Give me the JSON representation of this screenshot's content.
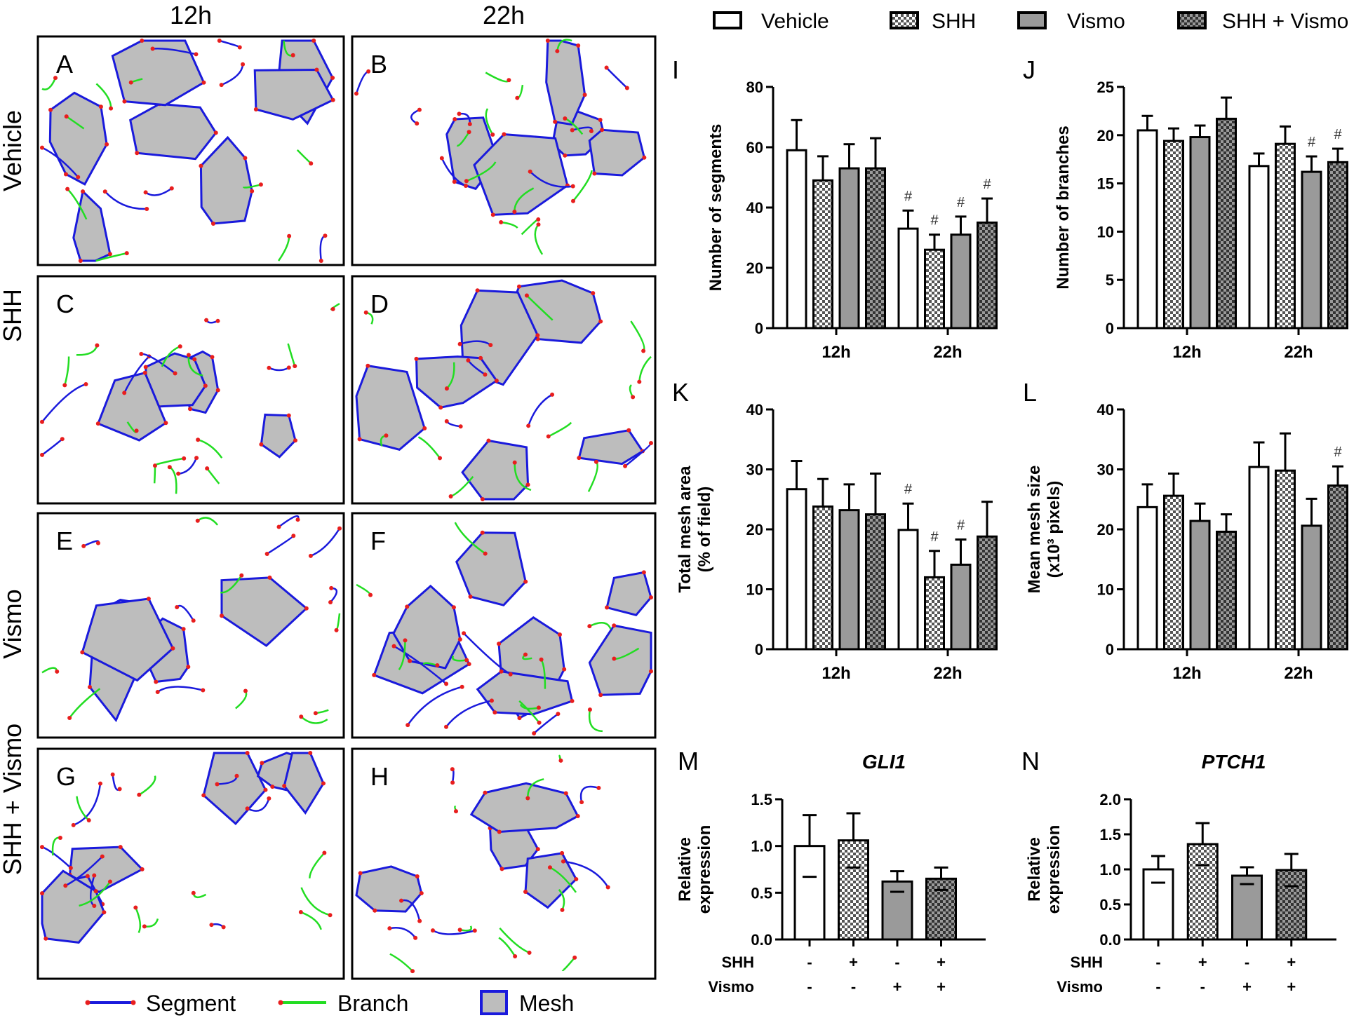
{
  "figure": {
    "column_headers": [
      "12h",
      "22h"
    ],
    "row_labels": [
      "Vehicle",
      "SHH",
      "Vismo",
      "SHH + Vismo"
    ],
    "image_panel_letters": [
      [
        "A",
        "B"
      ],
      [
        "C",
        "D"
      ],
      [
        "E",
        "F"
      ],
      [
        "G",
        "H"
      ]
    ],
    "image_legend": [
      {
        "label": "Segment",
        "color": "#1a1adc"
      },
      {
        "label": "Branch",
        "color": "#22dd22"
      },
      {
        "label": "Mesh",
        "color": "#bdbdbd"
      }
    ],
    "node_color": "#e81e1e",
    "bar_legend": [
      {
        "label": "Vehicle",
        "pattern": "white"
      },
      {
        "label": "SHH",
        "pattern": "check"
      },
      {
        "label": "Vismo",
        "pattern": "gray"
      },
      {
        "label": "SHH + Vismo",
        "pattern": "darkcheck"
      }
    ],
    "sig_marker": "#"
  },
  "chart_data": [
    {
      "panel": "I",
      "type": "bar",
      "ylabel": "Number of segments",
      "categories": [
        "12h",
        "22h"
      ],
      "ylim": [
        0,
        80
      ],
      "yticks": [
        0,
        20,
        40,
        60,
        80
      ],
      "series": [
        {
          "name": "Vehicle",
          "values": [
            59,
            33
          ],
          "errors": [
            10,
            6
          ],
          "sig": [
            false,
            true
          ]
        },
        {
          "name": "SHH",
          "values": [
            49,
            26
          ],
          "errors": [
            8,
            5
          ],
          "sig": [
            false,
            true
          ]
        },
        {
          "name": "Vismo",
          "values": [
            53,
            31
          ],
          "errors": [
            8,
            6
          ],
          "sig": [
            false,
            true
          ]
        },
        {
          "name": "SHH + Vismo",
          "values": [
            53,
            35
          ],
          "errors": [
            10,
            8
          ],
          "sig": [
            false,
            true
          ]
        }
      ]
    },
    {
      "panel": "J",
      "type": "bar",
      "ylabel": "Number of branches",
      "categories": [
        "12h",
        "22h"
      ],
      "ylim": [
        0,
        25
      ],
      "yticks": [
        0,
        5,
        10,
        15,
        20,
        25
      ],
      "series": [
        {
          "name": "Vehicle",
          "values": [
            20.5,
            16.8
          ],
          "errors": [
            1.5,
            1.3
          ],
          "sig": [
            false,
            false
          ]
        },
        {
          "name": "SHH",
          "values": [
            19.4,
            19.1
          ],
          "errors": [
            1.3,
            1.8
          ],
          "sig": [
            false,
            false
          ]
        },
        {
          "name": "Vismo",
          "values": [
            19.8,
            16.2
          ],
          "errors": [
            1.2,
            1.6
          ],
          "sig": [
            false,
            true
          ]
        },
        {
          "name": "SHH + Vismo",
          "values": [
            21.7,
            17.2
          ],
          "errors": [
            2.2,
            1.4
          ],
          "sig": [
            false,
            true
          ]
        }
      ]
    },
    {
      "panel": "K",
      "type": "bar",
      "ylabel": [
        "Total mesh area",
        "(% of field)"
      ],
      "categories": [
        "12h",
        "22h"
      ],
      "ylim": [
        0,
        40
      ],
      "yticks": [
        0,
        10,
        20,
        30,
        40
      ],
      "series": [
        {
          "name": "Vehicle",
          "values": [
            26.7,
            19.9
          ],
          "errors": [
            4.7,
            4.4
          ],
          "sig": [
            false,
            true
          ]
        },
        {
          "name": "SHH",
          "values": [
            23.8,
            12.0
          ],
          "errors": [
            4.6,
            4.4
          ],
          "sig": [
            false,
            true
          ]
        },
        {
          "name": "Vismo",
          "values": [
            23.2,
            14.1
          ],
          "errors": [
            4.3,
            4.2
          ],
          "sig": [
            false,
            true
          ]
        },
        {
          "name": "SHH + Vismo",
          "values": [
            22.5,
            18.8
          ],
          "errors": [
            6.8,
            5.8
          ],
          "sig": [
            false,
            false
          ]
        }
      ]
    },
    {
      "panel": "L",
      "type": "bar",
      "ylabel": [
        "Mean mesh size",
        "(x10³ pixels)"
      ],
      "categories": [
        "12h",
        "22h"
      ],
      "ylim": [
        0,
        40
      ],
      "yticks": [
        0,
        10,
        20,
        30,
        40
      ],
      "series": [
        {
          "name": "Vehicle",
          "values": [
            23.7,
            30.4
          ],
          "errors": [
            3.8,
            4.1
          ],
          "sig": [
            false,
            false
          ]
        },
        {
          "name": "SHH",
          "values": [
            25.6,
            29.8
          ],
          "errors": [
            3.7,
            6.2
          ],
          "sig": [
            false,
            false
          ]
        },
        {
          "name": "Vismo",
          "values": [
            21.4,
            20.6
          ],
          "errors": [
            2.9,
            4.5
          ],
          "sig": [
            false,
            false
          ]
        },
        {
          "name": "SHH + Vismo",
          "values": [
            19.6,
            27.3
          ],
          "errors": [
            2.9,
            3.2
          ],
          "sig": [
            false,
            true
          ]
        }
      ]
    },
    {
      "panel": "M",
      "type": "bar",
      "title": "GLI1",
      "ylabel": [
        "Relative",
        "expression"
      ],
      "ylim": [
        0,
        1.5
      ],
      "yticks": [
        "0.0",
        "0.5",
        "1.0",
        "1.5"
      ],
      "rows": [
        {
          "label": "SHH",
          "marks": [
            "-",
            "+",
            "-",
            "+"
          ]
        },
        {
          "label": "Vismo",
          "marks": [
            "-",
            "-",
            "+",
            "+"
          ]
        }
      ],
      "series": [
        {
          "name": "Vehicle",
          "value": 1.0,
          "error": 0.33
        },
        {
          "name": "SHH",
          "value": 1.06,
          "error": 0.29
        },
        {
          "name": "Vismo",
          "value": 0.62,
          "error": 0.11
        },
        {
          "name": "SHH + Vismo",
          "value": 0.65,
          "error": 0.12
        }
      ]
    },
    {
      "panel": "N",
      "type": "bar",
      "title": "PTCH1",
      "ylabel": [
        "Relative",
        "expression"
      ],
      "ylim": [
        0,
        2.0
      ],
      "yticks": [
        "0.0",
        "0.5",
        "1.0",
        "1.5",
        "2.0"
      ],
      "rows": [
        {
          "label": "SHH",
          "marks": [
            "-",
            "+",
            "-",
            "+"
          ]
        },
        {
          "label": "Vismo",
          "marks": [
            "-",
            "-",
            "+",
            "+"
          ]
        }
      ],
      "series": [
        {
          "name": "Vehicle",
          "value": 1.0,
          "error": 0.19
        },
        {
          "name": "SHH",
          "value": 1.36,
          "error": 0.3
        },
        {
          "name": "Vismo",
          "value": 0.91,
          "error": 0.12
        },
        {
          "name": "SHH + Vismo",
          "value": 0.99,
          "error": 0.23
        }
      ]
    }
  ]
}
